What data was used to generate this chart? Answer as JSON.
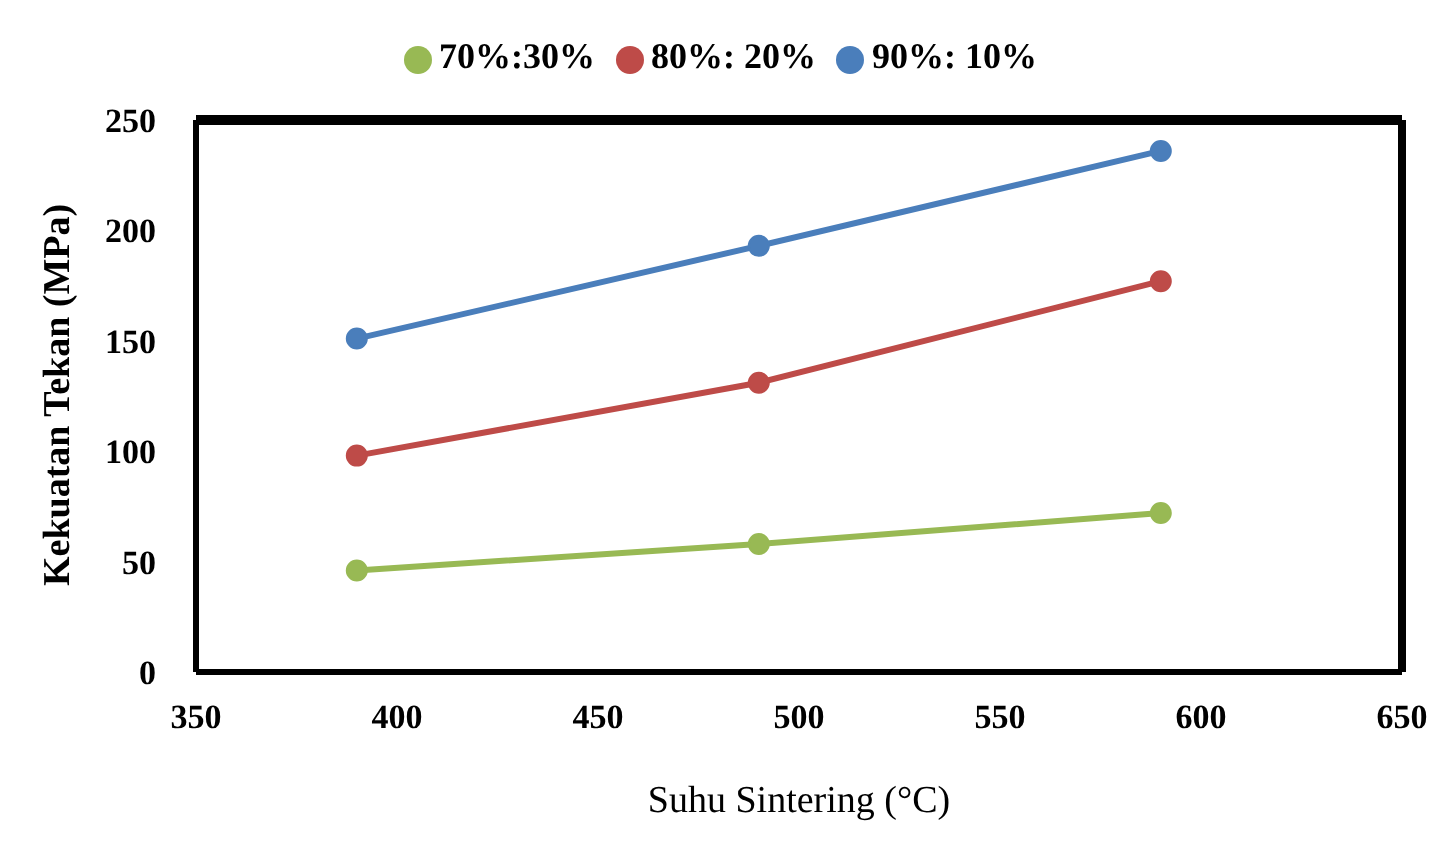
{
  "chart_data": {
    "type": "line",
    "xlabel": "Suhu Sintering (°C)",
    "ylabel": "Kekuatan Tekan (MPa)",
    "x": [
      390,
      490,
      590
    ],
    "series": [
      {
        "name": "90%: 10%",
        "color": "#4a7ebb",
        "values": [
          151,
          193,
          236
        ]
      },
      {
        "name": "80%: 20%",
        "color": "#be4b48",
        "values": [
          98,
          131,
          177
        ]
      },
      {
        "name": "70%:30%",
        "color": "#98b954",
        "values": [
          46,
          58,
          72
        ]
      }
    ],
    "xlim": [
      350,
      650
    ],
    "xticks": [
      350,
      400,
      450,
      500,
      550,
      600,
      650
    ],
    "ylim": [
      0,
      250
    ],
    "yticks": [
      0,
      50,
      100,
      150,
      200,
      250
    ],
    "grid": false,
    "legend": "top",
    "marker": "circle",
    "line_style": "solid"
  }
}
